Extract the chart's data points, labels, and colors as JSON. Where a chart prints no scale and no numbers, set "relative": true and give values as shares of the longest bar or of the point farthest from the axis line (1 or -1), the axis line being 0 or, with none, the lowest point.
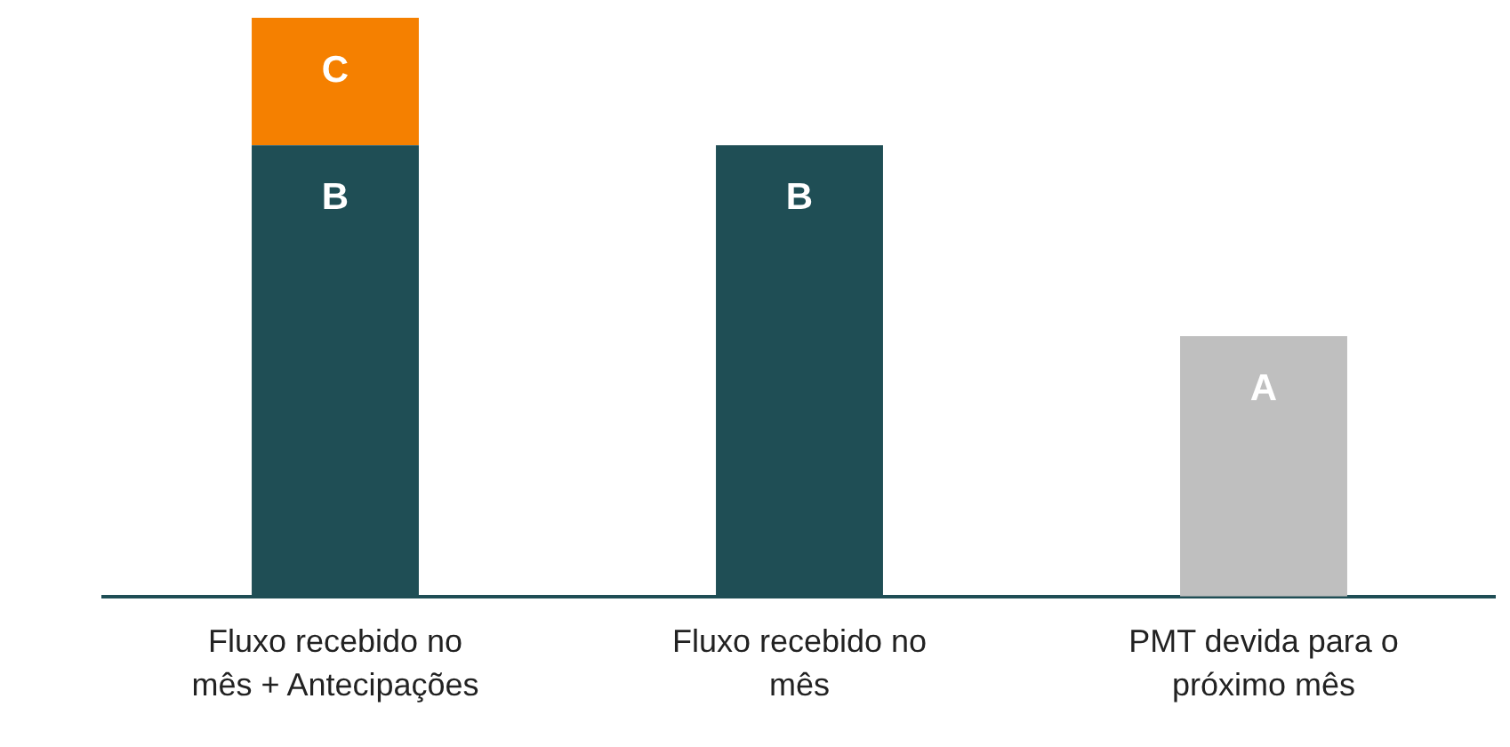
{
  "chart_data": {
    "type": "bar",
    "relative": true,
    "stacked": true,
    "grid": false,
    "legend": false,
    "categories": [
      "Fluxo recebido no mês + Antecipações",
      "Fluxo recebido no mês",
      "PMT devida para o próximo mês"
    ],
    "series": [
      {
        "name": "B",
        "color": "#1f4e55",
        "values": [
          0.78,
          0.78,
          null
        ]
      },
      {
        "name": "C",
        "color": "#f58000",
        "values": [
          0.22,
          null,
          null
        ]
      },
      {
        "name": "A",
        "color": "#bfbfbf",
        "values": [
          null,
          null,
          0.45
        ]
      }
    ]
  }
}
